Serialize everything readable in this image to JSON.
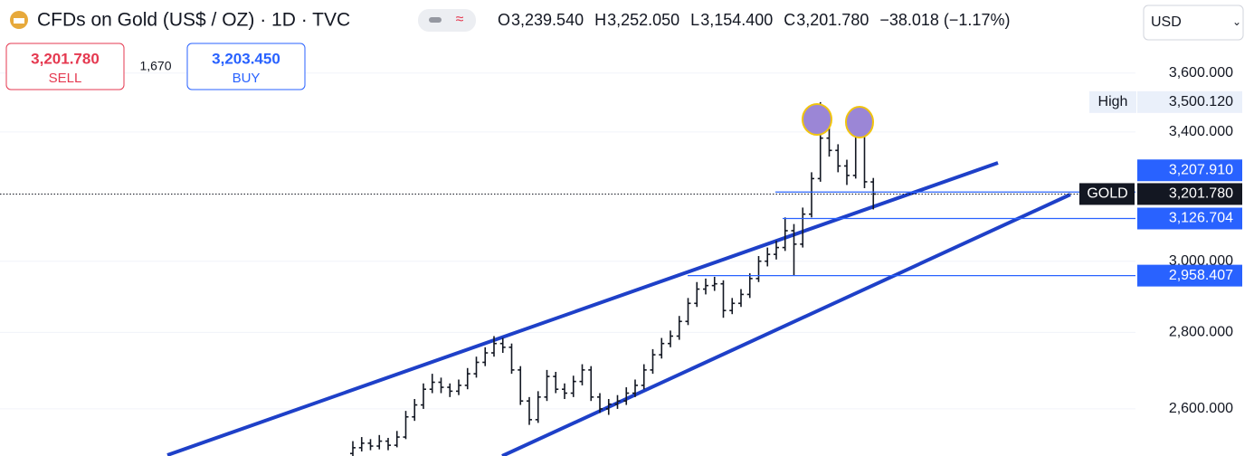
{
  "header": {
    "title": "CFDs on Gold (US$ / OZ) · 1D · TVC",
    "ohlc": [
      {
        "label": "O",
        "value": "3,239.540"
      },
      {
        "label": "H",
        "value": "3,252.050"
      },
      {
        "label": "L",
        "value": "3,154.400"
      },
      {
        "label": "C",
        "value": "3,201.780"
      }
    ],
    "change": "−38.018 (−1.17%)",
    "sell": {
      "price": "3,201.780",
      "label": "SELL"
    },
    "spread": "1,670",
    "buy": {
      "price": "3,203.450",
      "label": "BUY"
    },
    "currency": "USD"
  },
  "chart_data": {
    "type": "ohlc",
    "log_scale": true,
    "grid": true,
    "color": "#131722",
    "categories": [
      null,
      null,
      null,
      null,
      null,
      null,
      null,
      null,
      null,
      null,
      null,
      null,
      null,
      null,
      null,
      null,
      null,
      null,
      null,
      null,
      null,
      null,
      null,
      null,
      null,
      null,
      null,
      null,
      null,
      null,
      null,
      null,
      null,
      null,
      null,
      null,
      null,
      null,
      null,
      null,
      null,
      null,
      null,
      null,
      null,
      null,
      null,
      null,
      null,
      null,
      null,
      null,
      null,
      null,
      null,
      null,
      null,
      null,
      null,
      null
    ],
    "open": [
      2490,
      2504,
      2515,
      2508,
      2520,
      2510,
      2530,
      2580,
      2610,
      2650,
      2668,
      2655,
      2645,
      2660,
      2690,
      2720,
      2745,
      2770,
      2760,
      2700,
      2620,
      2573,
      2630,
      2683,
      2650,
      2640,
      2670,
      2700,
      2630,
      2600,
      2612,
      2620,
      2640,
      2660,
      2700,
      2740,
      2770,
      2790,
      2830,
      2880,
      2920,
      2930,
      2935,
      2860,
      2880,
      2905,
      2950,
      3000,
      3020,
      3040,
      3090,
      3050,
      3140,
      3250,
      3380,
      3340,
      3290,
      3260,
      3400,
      3239.54
    ],
    "high": [
      2520,
      2530,
      2525,
      2535,
      2528,
      2545,
      2595,
      2625,
      2665,
      2690,
      2680,
      2665,
      2675,
      2705,
      2735,
      2760,
      2790,
      2785,
      2770,
      2710,
      2630,
      2645,
      2700,
      2695,
      2665,
      2685,
      2715,
      2710,
      2640,
      2625,
      2635,
      2655,
      2675,
      2715,
      2755,
      2785,
      2805,
      2845,
      2895,
      2940,
      2950,
      2955,
      2945,
      2895,
      2920,
      2965,
      3015,
      3040,
      3060,
      3130,
      3110,
      3160,
      3270,
      3500.12,
      3420,
      3360,
      3310,
      3470,
      3420,
      3252.05
    ],
    "low": [
      2480,
      2495,
      2498,
      2500,
      2498,
      2505,
      2525,
      2570,
      2600,
      2640,
      2640,
      2630,
      2635,
      2650,
      2680,
      2710,
      2735,
      2745,
      2690,
      2610,
      2560,
      2565,
      2620,
      2640,
      2625,
      2630,
      2660,
      2620,
      2590,
      2585,
      2600,
      2610,
      2630,
      2650,
      2690,
      2730,
      2760,
      2780,
      2820,
      2870,
      2905,
      2915,
      2840,
      2850,
      2870,
      2895,
      2940,
      2985,
      3005,
      3030,
      2958,
      3040,
      3130,
      3240,
      3320,
      3270,
      3230,
      3250,
      3220,
      3154.4
    ],
    "close": [
      2504,
      2515,
      2508,
      2520,
      2510,
      2530,
      2580,
      2610,
      2650,
      2668,
      2655,
      2645,
      2660,
      2690,
      2720,
      2745,
      2770,
      2760,
      2700,
      2620,
      2573,
      2630,
      2683,
      2650,
      2640,
      2670,
      2700,
      2630,
      2600,
      2612,
      2620,
      2640,
      2660,
      2700,
      2740,
      2770,
      2790,
      2830,
      2880,
      2920,
      2930,
      2935,
      2860,
      2880,
      2905,
      2950,
      3000,
      3020,
      3040,
      3090,
      3050,
      3140,
      3250,
      3380,
      3340,
      3290,
      3260,
      3400,
      3240,
      3201.78
    ],
    "ylim": [
      2484,
      3864
    ],
    "yticks": [
      {
        "value": 2600,
        "label": "2,600.000"
      },
      {
        "value": 2800,
        "label": "2,800.000"
      },
      {
        "value": 3000,
        "label": "3,000.000"
      },
      {
        "value": 3400,
        "label": "3,400.000"
      },
      {
        "value": 3600,
        "label": "3,600.000"
      }
    ],
    "price_markers": [
      {
        "name": "High",
        "value": 3500.12,
        "label": "3,500.120",
        "style": "plain"
      },
      {
        "value": 3207.91,
        "label": "3,207.910",
        "style": "blue"
      },
      {
        "name": "GOLD",
        "value": 3201.78,
        "label": "3,201.780",
        "style": "black"
      },
      {
        "value": 3126.704,
        "label": "3,126.704",
        "style": "blue"
      },
      {
        "value": 2958.407,
        "label": "2,958.407",
        "style": "blue"
      }
    ]
  }
}
